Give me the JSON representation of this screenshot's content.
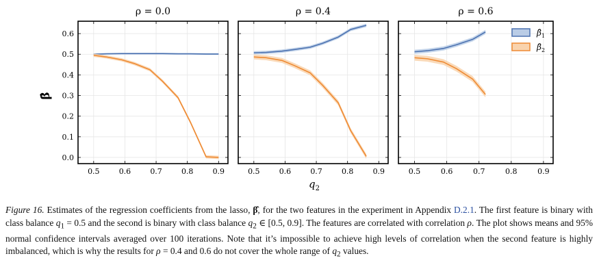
{
  "figure": {
    "ylabel": "β̂",
    "xlabel": "q",
    "xlabel_sub": "2",
    "legend": [
      {
        "symbol": "β̂",
        "sub": "1"
      },
      {
        "symbol": "β̂",
        "sub": "2"
      }
    ],
    "colors": {
      "beta1_line": "#4c72b0",
      "beta1_fill": "#b9cce6",
      "beta2_line": "#ee8a33",
      "beta2_fill": "#f9d3ad",
      "grid": "#e6e6e6"
    }
  },
  "chart_data": [
    {
      "type": "line",
      "title": "ρ = 0.0",
      "xlim": [
        0.45,
        0.93
      ],
      "ylim": [
        -0.03,
        0.66
      ],
      "xticks": [
        0.5,
        0.6,
        0.7,
        0.8,
        0.9
      ],
      "yticks": [
        0.0,
        0.1,
        0.2,
        0.3,
        0.4,
        0.5,
        0.6
      ],
      "grid": true,
      "series": [
        {
          "x": [
            0.5,
            0.54,
            0.59,
            0.63,
            0.68,
            0.72,
            0.77,
            0.81,
            0.86,
            0.9
          ],
          "y": [
            0.5,
            0.502,
            0.503,
            0.503,
            0.503,
            0.503,
            0.502,
            0.502,
            0.501,
            0.501
          ],
          "ci": 0.004
        },
        {
          "x": [
            0.5,
            0.54,
            0.59,
            0.63,
            0.68,
            0.72,
            0.77,
            0.81,
            0.86,
            0.9
          ],
          "y": [
            0.495,
            0.487,
            0.473,
            0.455,
            0.425,
            0.37,
            0.29,
            0.17,
            0.003,
            0.0
          ],
          "ci": 0.008
        }
      ]
    },
    {
      "type": "line",
      "title": "ρ = 0.4",
      "xlim": [
        0.45,
        0.93
      ],
      "ylim": [
        -0.03,
        0.66
      ],
      "xticks": [
        0.5,
        0.6,
        0.7,
        0.8,
        0.9
      ],
      "yticks": [
        0.0,
        0.1,
        0.2,
        0.3,
        0.4,
        0.5,
        0.6
      ],
      "grid": true,
      "series": [
        {
          "x": [
            0.5,
            0.54,
            0.59,
            0.63,
            0.68,
            0.72,
            0.77,
            0.81,
            0.86
          ],
          "y": [
            0.507,
            0.509,
            0.515,
            0.523,
            0.534,
            0.553,
            0.583,
            0.62,
            0.64
          ],
          "ci": 0.008
        },
        {
          "x": [
            0.5,
            0.54,
            0.59,
            0.63,
            0.68,
            0.72,
            0.77,
            0.81,
            0.86
          ],
          "y": [
            0.487,
            0.483,
            0.47,
            0.445,
            0.41,
            0.35,
            0.265,
            0.13,
            0.005
          ],
          "ci": 0.012
        }
      ]
    },
    {
      "type": "line",
      "title": "ρ = 0.6",
      "xlim": [
        0.45,
        0.93
      ],
      "ylim": [
        -0.03,
        0.66
      ],
      "xticks": [
        0.5,
        0.6,
        0.7,
        0.8,
        0.9
      ],
      "yticks": [
        0.0,
        0.1,
        0.2,
        0.3,
        0.4,
        0.5,
        0.6
      ],
      "grid": true,
      "series": [
        {
          "x": [
            0.5,
            0.54,
            0.59,
            0.63,
            0.68,
            0.72
          ],
          "y": [
            0.512,
            0.517,
            0.528,
            0.546,
            0.572,
            0.608
          ],
          "ci": 0.01
        },
        {
          "x": [
            0.5,
            0.54,
            0.59,
            0.63,
            0.68,
            0.72
          ],
          "y": [
            0.483,
            0.478,
            0.462,
            0.43,
            0.38,
            0.305
          ],
          "ci": 0.014
        }
      ]
    }
  ],
  "caption": {
    "label": "Figure 16.",
    "t1": " Estimates of the regression coefficients from the lasso, ",
    "beta": "β̂",
    "t2": ", for the two features in the experiment in Appendix ",
    "ref": "D.2.1",
    "t3": ". The first feature is binary with class balance ",
    "q1": "q",
    "q1_sub": "1",
    "eq1": " = 0.5 and the second is binary with class balance ",
    "q2": "q",
    "q2_sub": "2",
    "eq2": " ∈ [0.5, 0.9]. The features are correlated with correlation ",
    "rho": "ρ",
    "t4": ". The plot shows means and 95% normal confidence intervals averaged over 100 iterations. Note that it’s impossible to achieve high levels of correlation when the second feature is highly imbalanced, which is why the results for ",
    "rho2": "ρ",
    "t5": " = 0.4 and 0.6 do not cover the whole range of ",
    "q2b": "q",
    "q2b_sub": "2",
    "t6": " values."
  }
}
